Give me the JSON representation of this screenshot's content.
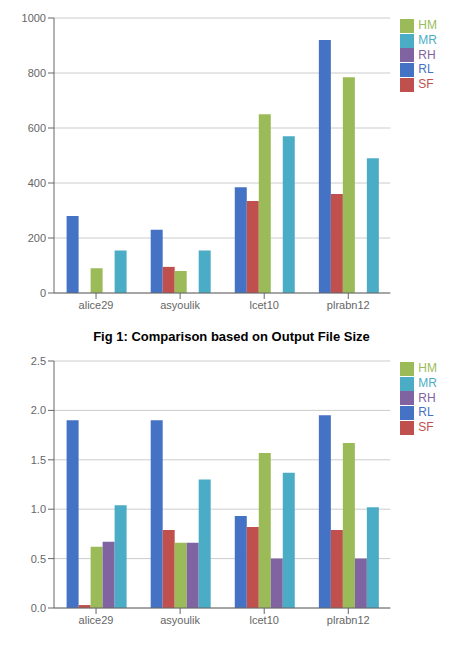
{
  "chart_data": [
    {
      "type": "bar",
      "categories": [
        "alice29",
        "asyoulik",
        "lcet10",
        "plrabn12"
      ],
      "series": [
        {
          "name": "RL",
          "color": "#4472C4",
          "values": [
            280,
            230,
            385,
            920
          ]
        },
        {
          "name": "SF",
          "color": "#C0504D",
          "values": [
            0,
            95,
            335,
            360
          ]
        },
        {
          "name": "HM",
          "color": "#9BBB59",
          "values": [
            90,
            80,
            650,
            785
          ]
        },
        {
          "name": "RH",
          "color": "#8064A2",
          "values": [
            0,
            0,
            0,
            0
          ]
        },
        {
          "name": "MR",
          "color": "#4BACC6",
          "values": [
            155,
            155,
            570,
            490
          ]
        }
      ],
      "ylim": [
        0,
        1000
      ],
      "yticks": [
        0,
        200,
        400,
        600,
        800,
        1000
      ],
      "grid": true,
      "legend": "right"
    },
    {
      "type": "bar",
      "title": "Fig 1: Comparison based on Output File Size",
      "categories": [
        "alice29",
        "asyoulik",
        "lcet10",
        "plrabn12"
      ],
      "series": [
        {
          "name": "RL",
          "color": "#4472C4",
          "values": [
            1.9,
            1.9,
            0.93,
            1.95
          ]
        },
        {
          "name": "SF",
          "color": "#C0504D",
          "values": [
            0.03,
            0.79,
            0.82,
            0.79
          ]
        },
        {
          "name": "HM",
          "color": "#9BBB59",
          "values": [
            0.62,
            0.66,
            1.57,
            1.67
          ]
        },
        {
          "name": "RH",
          "color": "#8064A2",
          "values": [
            0.67,
            0.66,
            0.5,
            0.5
          ]
        },
        {
          "name": "MR",
          "color": "#4BACC6",
          "values": [
            1.04,
            1.3,
            1.37,
            1.02
          ]
        }
      ],
      "ylim": [
        0,
        2.5
      ],
      "yticks": [
        {
          "value": 0,
          "label": "0.0"
        },
        0.5,
        {
          "value": 1.0,
          "label": "1.0"
        },
        1.5,
        {
          "value": 2.0,
          "label": "2.0"
        },
        2.5
      ],
      "grid": true,
      "legend": "right"
    }
  ]
}
